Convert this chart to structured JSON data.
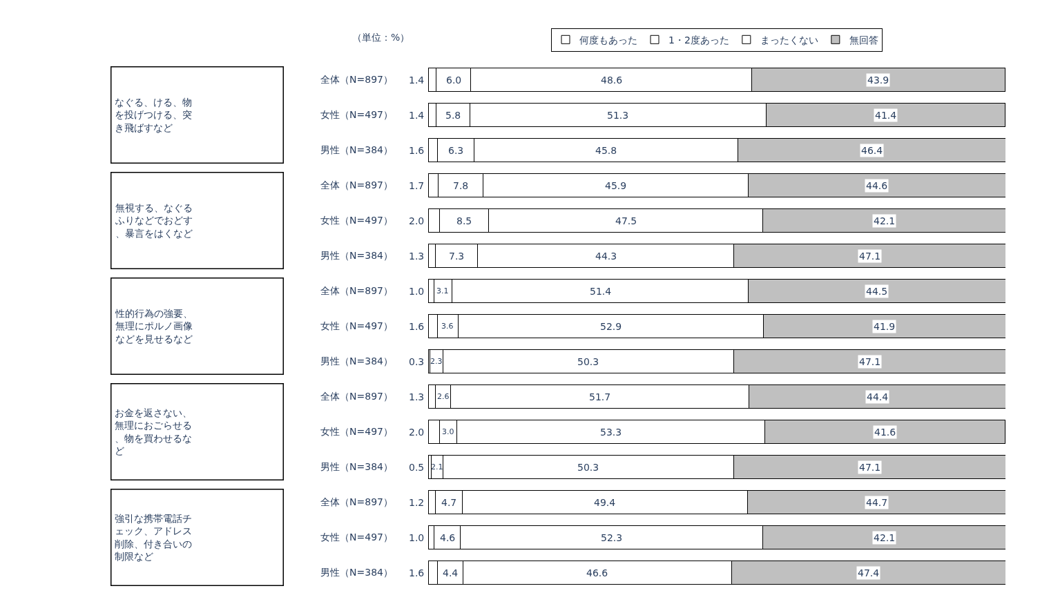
{
  "chart_data": {
    "type": "bar",
    "orientation": "horizontal",
    "stacked": true,
    "legend": "top",
    "tick_labels": "y",
    "xlim": [
      0,
      100
    ],
    "categories": [
      "全体（N=897）",
      "女性（N=497）",
      "男性（N=384）",
      "全体（N=897）",
      "女性（N=497）",
      "男性（N=384）",
      "全体（N=897）",
      "女性（N=497）",
      "男性（N=384）",
      "全体（N=897）",
      "女性（N=497）",
      "男性（N=384）",
      "全体（N=897）",
      "女性（N=497）",
      "男性（N=384）"
    ],
    "series": [
      {
        "name": "何度もあった",
        "color": "#ffffff",
        "values": [
          1.4,
          1.4,
          1.6,
          1.7,
          2.0,
          1.3,
          1.0,
          1.6,
          0.3,
          1.3,
          2.0,
          0.5,
          1.2,
          1.0,
          1.6
        ],
        "value_labels": [
          "1.4",
          "1.4",
          "1.6",
          "1.7",
          "2.0",
          "1.3",
          "1.0",
          "1.6",
          "0.3",
          "1.3",
          "2.0",
          "0.5",
          "1.2",
          "1.0",
          "1.6"
        ]
      },
      {
        "name": "1・2度あった",
        "color": "#ffffff",
        "values": [
          6.0,
          5.8,
          6.3,
          7.8,
          8.5,
          7.3,
          3.1,
          3.6,
          2.3,
          2.6,
          3.0,
          2.1,
          4.7,
          4.6,
          4.4
        ],
        "value_labels": [
          "6.0",
          "5.8",
          "6.3",
          "7.8",
          "8.5",
          "7.3",
          "3.1",
          "3.6",
          "2.3",
          "2.6",
          "3.0",
          "2.1",
          "4.7",
          "4.6",
          "4.4"
        ]
      },
      {
        "name": "まったくない",
        "color": "#ffffff",
        "values": [
          48.6,
          51.3,
          45.8,
          45.9,
          47.5,
          44.3,
          51.4,
          52.9,
          50.3,
          51.7,
          53.3,
          50.3,
          49.4,
          52.3,
          46.6
        ],
        "value_labels": [
          "48.6",
          "51.3",
          "45.8",
          "45.9",
          "47.5",
          "44.3",
          "51.4",
          "52.9",
          "50.3",
          "51.7",
          "53.3",
          "50.3",
          "49.4",
          "52.3",
          "46.6"
        ]
      },
      {
        "name": "無回答",
        "color": "#c0c0c0",
        "values": [
          43.9,
          41.4,
          46.4,
          44.6,
          42.1,
          47.1,
          44.5,
          41.9,
          47.1,
          44.4,
          41.6,
          47.1,
          44.7,
          42.1,
          47.4
        ],
        "value_labels": [
          "43.9",
          "41.4",
          "46.4",
          "44.6",
          "42.1",
          "47.1",
          "44.5",
          "41.9",
          "47.1",
          "44.4",
          "41.6",
          "47.1",
          "44.7",
          "42.1",
          "47.4"
        ]
      }
    ],
    "annotations": [
      "（単位：%）",
      "なぐる、ける、物を投げつける、突き飛ばすなど",
      "無視する、なぐるふりなどでおどす、暴言をはくなど",
      "性的行為の強要、無理にポルノ画像などを見せるなど",
      "お金を返さない、無理におごらせる、物を買わせるなど",
      "強引な携帯電話チェック、アドレス削除、付き合いの制限など"
    ]
  }
}
